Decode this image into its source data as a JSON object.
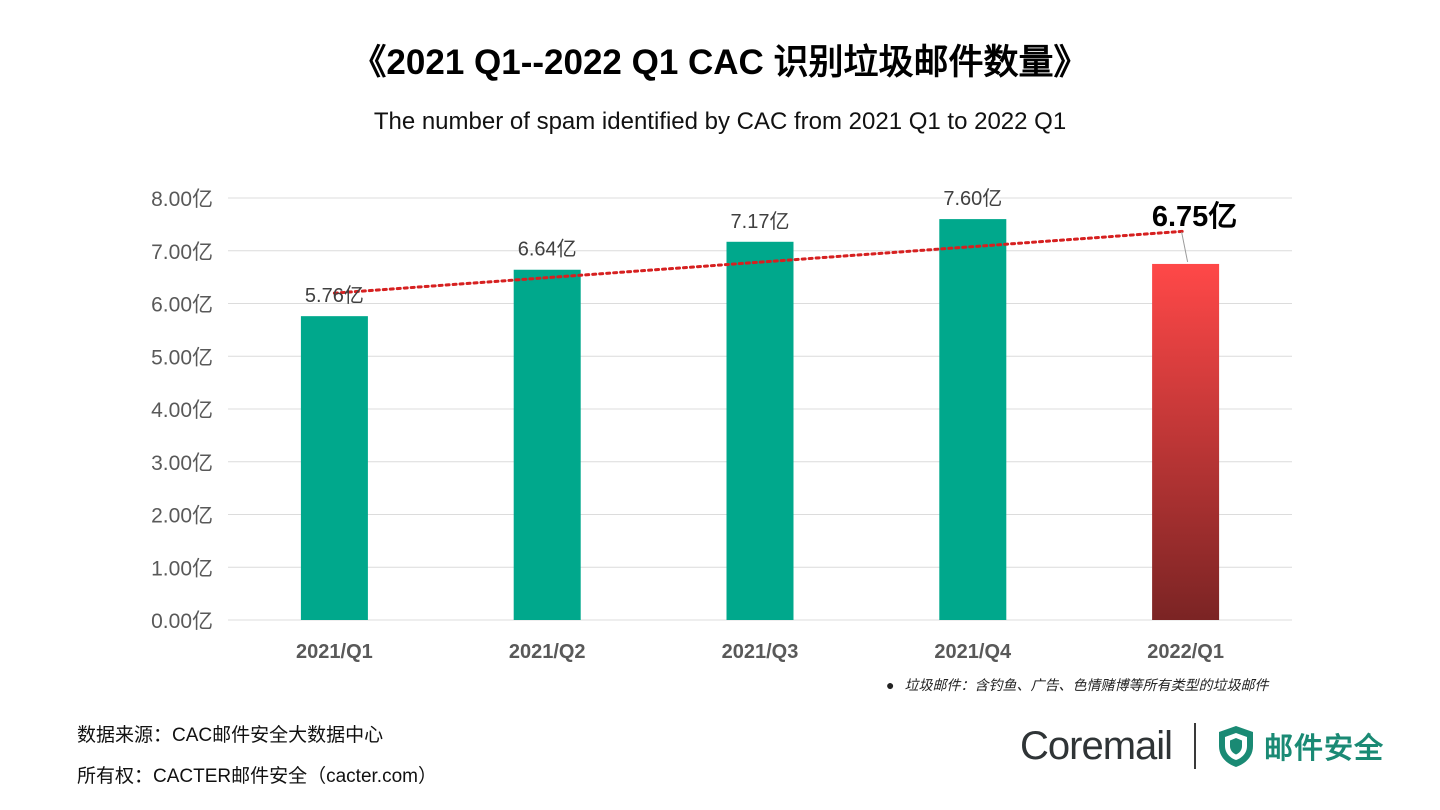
{
  "title": "《2021 Q1--2022 Q1 CAC 识别垃圾邮件数量》",
  "subtitle": "The number of spam identified by CAC from 2021 Q1 to 2022 Q1",
  "note": {
    "bullet": "●",
    "text": "垃圾邮件：含钓鱼、广告、色情赌博等所有类型的垃圾邮件"
  },
  "source": "数据来源：CAC邮件安全大数据中心",
  "copyright": "所有权：CACTER邮件安全（cacter.com）",
  "brand": {
    "coremail": "Coremail",
    "cn_name": "邮件安全",
    "shield_icon": "shield-icon"
  },
  "colors": {
    "bar": "#00a88c",
    "highlight_top": "#ff4848",
    "highlight_bottom": "#7b2424",
    "trendline": "#d62020",
    "grid": "#dcdcdc",
    "brand_green": "#1a8a74"
  },
  "chart_data": {
    "type": "bar",
    "categories": [
      "2021/Q1",
      "2021/Q2",
      "2021/Q3",
      "2021/Q4",
      "2022/Q1"
    ],
    "values": [
      5.76,
      6.64,
      7.17,
      7.6,
      6.75
    ],
    "data_labels": [
      "5.76亿",
      "6.64亿",
      "7.17亿",
      "7.60亿",
      "6.75亿"
    ],
    "highlight_index": 4,
    "y_ticks": [
      "0.00亿",
      "1.00亿",
      "2.00亿",
      "3.00亿",
      "4.00亿",
      "5.00亿",
      "6.00亿",
      "7.00亿",
      "8.00亿"
    ],
    "ylim": [
      0,
      8
    ],
    "grid": true,
    "trendline": {
      "type": "linear",
      "style": "dotted"
    },
    "title": "《2021 Q1--2022 Q1 CAC 识别垃圾邮件数量》",
    "subtitle": "The number of spam identified by CAC from 2021 Q1 to 2022 Q1",
    "xlabel": "",
    "ylabel": ""
  }
}
